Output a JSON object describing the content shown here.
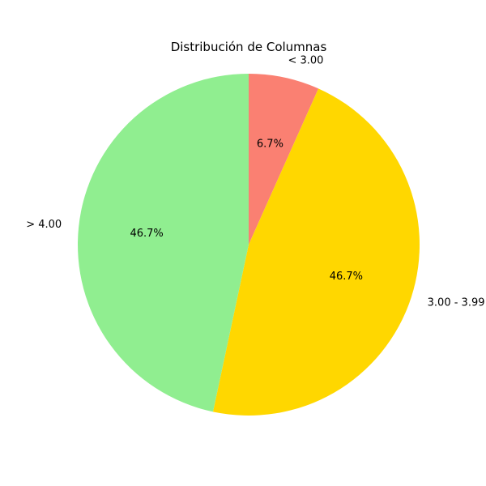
{
  "chart_data": {
    "type": "pie",
    "title": "Distribución de Columnas",
    "start_angle_deg": 90,
    "direction": "clockwise",
    "slices": [
      {
        "label": "< 3.00",
        "value": 6.7,
        "pct_text": "6.7%",
        "color": "#fa8072"
      },
      {
        "label": "3.00 - 3.99",
        "value": 46.7,
        "pct_text": "46.7%",
        "color": "#ffd700"
      },
      {
        "label": "> 4.00",
        "value": 46.7,
        "pct_text": "46.7%",
        "color": "#90ee90"
      }
    ]
  }
}
